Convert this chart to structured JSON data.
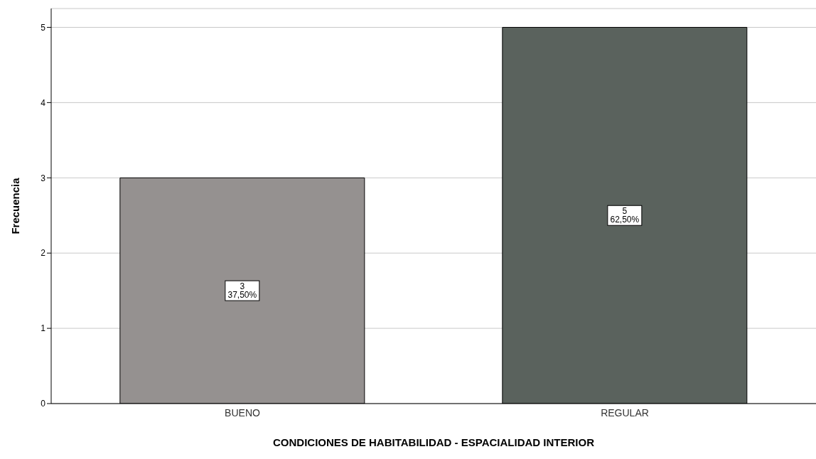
{
  "chart_data": {
    "type": "bar",
    "xlabel": "CONDICIONES DE HABITABILIDAD - ESPACIALIDAD INTERIOR",
    "ylabel": "Frecuencia",
    "categories": [
      "BUENO",
      "REGULAR"
    ],
    "values": [
      3,
      5
    ],
    "colors": [
      "#959190",
      "#5a625d"
    ],
    "value_labels": [
      "3\n37,50%",
      "5\n62,50%"
    ],
    "ylim": [
      0,
      5.25
    ],
    "yticks": [
      0,
      1,
      2,
      3,
      4,
      5
    ],
    "grid": "y"
  }
}
